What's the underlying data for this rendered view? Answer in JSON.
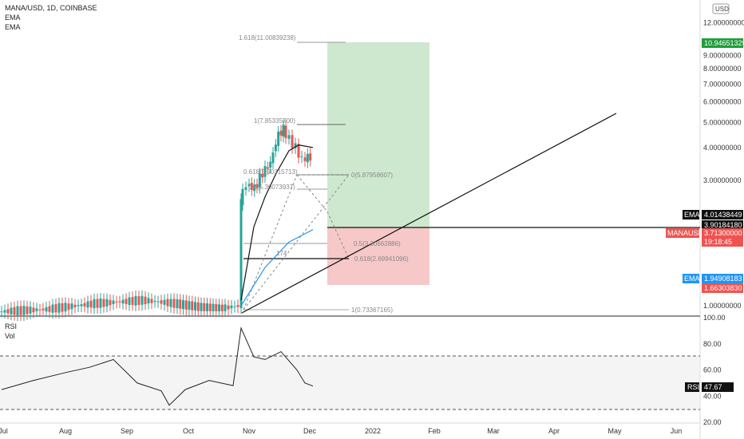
{
  "chart_data": [
    {
      "type": "line",
      "symbol_label": "MANA/USD, 1D, COINBASE",
      "indicators": [
        "EMA",
        "EMA"
      ],
      "currency": "USD",
      "y_scale": "log",
      "ylim": [
        0.92,
        12.9
      ],
      "x_ticks": [
        "Jul",
        "Aug",
        "Sep",
        "Oct",
        "Nov",
        "Dec",
        "2022",
        "Feb",
        "Mar",
        "Apr",
        "May",
        "Jun"
      ],
      "y_ticks": [
        "12.00000000",
        "10.00000000",
        "9.00000000",
        "8.00000000",
        "7.00000000",
        "6.00000000",
        "5.00000000",
        "4.00000000",
        "3.00000000",
        "2.00000000",
        "1.00000000"
      ],
      "price_tags": [
        {
          "label": "",
          "value": "10.94651329",
          "color": "#1e9e3a"
        },
        {
          "label": "EMA",
          "value": "4.01438449",
          "color": "#111111"
        },
        {
          "label": "",
          "value": "3.90184180",
          "color": "#111111"
        },
        {
          "label": "MANAUSD",
          "value": "3.71300000",
          "color": "#ef5350",
          "sub": "19:18:45"
        },
        {
          "label": "EMA",
          "value": "1.94908183",
          "color": "#2196f3"
        },
        {
          "label": "",
          "value": "1.66303830",
          "color": "#ef5350"
        }
      ],
      "fib_labels": [
        {
          "text": "1.618(11.00839238)",
          "price": 11.008
        },
        {
          "text": "1(7.85335700)",
          "price": 7.853
        },
        {
          "text": "0.618(5.90315713)",
          "price": 5.903
        },
        {
          "text": "0.5(5.30073937)",
          "price": 5.301
        },
        {
          "text": "0(5.87958607)",
          "price": 5.88
        },
        {
          "text": "0.5(3.30662886)",
          "price": 3.307
        },
        {
          "text": "0.618(2.69941096)",
          "price": 2.699
        },
        {
          "text": "1(0.73367165)",
          "price": 0.734
        }
      ],
      "partial_fib_label": "174",
      "position": {
        "entry": 3.713,
        "target": 10.94651329,
        "stop": 1.6630383
      },
      "trendline": [
        {
          "x": 0.0,
          "y": 0.9
        },
        {
          "x": 280.0,
          "y": 8.3
        }
      ],
      "price_series_approx": [
        {
          "x": 0,
          "y": 0.95
        },
        {
          "x": 30,
          "y": 0.97
        },
        {
          "x": 60,
          "y": 1.02
        },
        {
          "x": 90,
          "y": 1.05
        },
        {
          "x": 110,
          "y": 1.02
        },
        {
          "x": 125,
          "y": 0.99
        },
        {
          "x": 140,
          "y": 0.98
        },
        {
          "x": 150,
          "y": 1.0
        },
        {
          "x": 151,
          "y": 2.5
        },
        {
          "x": 155,
          "y": 2.9
        },
        {
          "x": 160,
          "y": 2.8
        },
        {
          "x": 165,
          "y": 3.2
        },
        {
          "x": 170,
          "y": 3.5
        },
        {
          "x": 175,
          "y": 4.5
        },
        {
          "x": 178,
          "y": 4.7
        },
        {
          "x": 182,
          "y": 4.3
        },
        {
          "x": 186,
          "y": 4.0
        },
        {
          "x": 190,
          "y": 3.6
        },
        {
          "x": 195,
          "y": 3.71
        }
      ],
      "ema_fast": [
        {
          "x": 150,
          "y": 1.05
        },
        {
          "x": 158,
          "y": 2.0
        },
        {
          "x": 165,
          "y": 2.6
        },
        {
          "x": 172,
          "y": 3.2
        },
        {
          "x": 180,
          "y": 3.9
        },
        {
          "x": 186,
          "y": 4.1
        },
        {
          "x": 195,
          "y": 4.01
        }
      ],
      "ema_slow": [
        {
          "x": 150,
          "y": 1.0
        },
        {
          "x": 165,
          "y": 1.4
        },
        {
          "x": 180,
          "y": 1.75
        },
        {
          "x": 195,
          "y": 1.95
        }
      ]
    },
    {
      "type": "line",
      "panel_labels": [
        "RSI",
        "Vol"
      ],
      "ylim": [
        20,
        100
      ],
      "y_ticks": [
        "100.00",
        "80.00",
        "60.00",
        "40.00",
        "20.00"
      ],
      "bands": [
        70,
        30
      ],
      "current": {
        "label": "RSI",
        "value": "47.67"
      },
      "rsi_series_approx": [
        {
          "x": 0,
          "y": 45
        },
        {
          "x": 20,
          "y": 52
        },
        {
          "x": 40,
          "y": 58
        },
        {
          "x": 55,
          "y": 62
        },
        {
          "x": 70,
          "y": 68
        },
        {
          "x": 85,
          "y": 50
        },
        {
          "x": 100,
          "y": 44
        },
        {
          "x": 105,
          "y": 33
        },
        {
          "x": 115,
          "y": 45
        },
        {
          "x": 130,
          "y": 52
        },
        {
          "x": 145,
          "y": 48
        },
        {
          "x": 150,
          "y": 92
        },
        {
          "x": 158,
          "y": 70
        },
        {
          "x": 165,
          "y": 68
        },
        {
          "x": 175,
          "y": 74
        },
        {
          "x": 185,
          "y": 60
        },
        {
          "x": 190,
          "y": 50
        },
        {
          "x": 195,
          "y": 47.67
        }
      ]
    }
  ]
}
